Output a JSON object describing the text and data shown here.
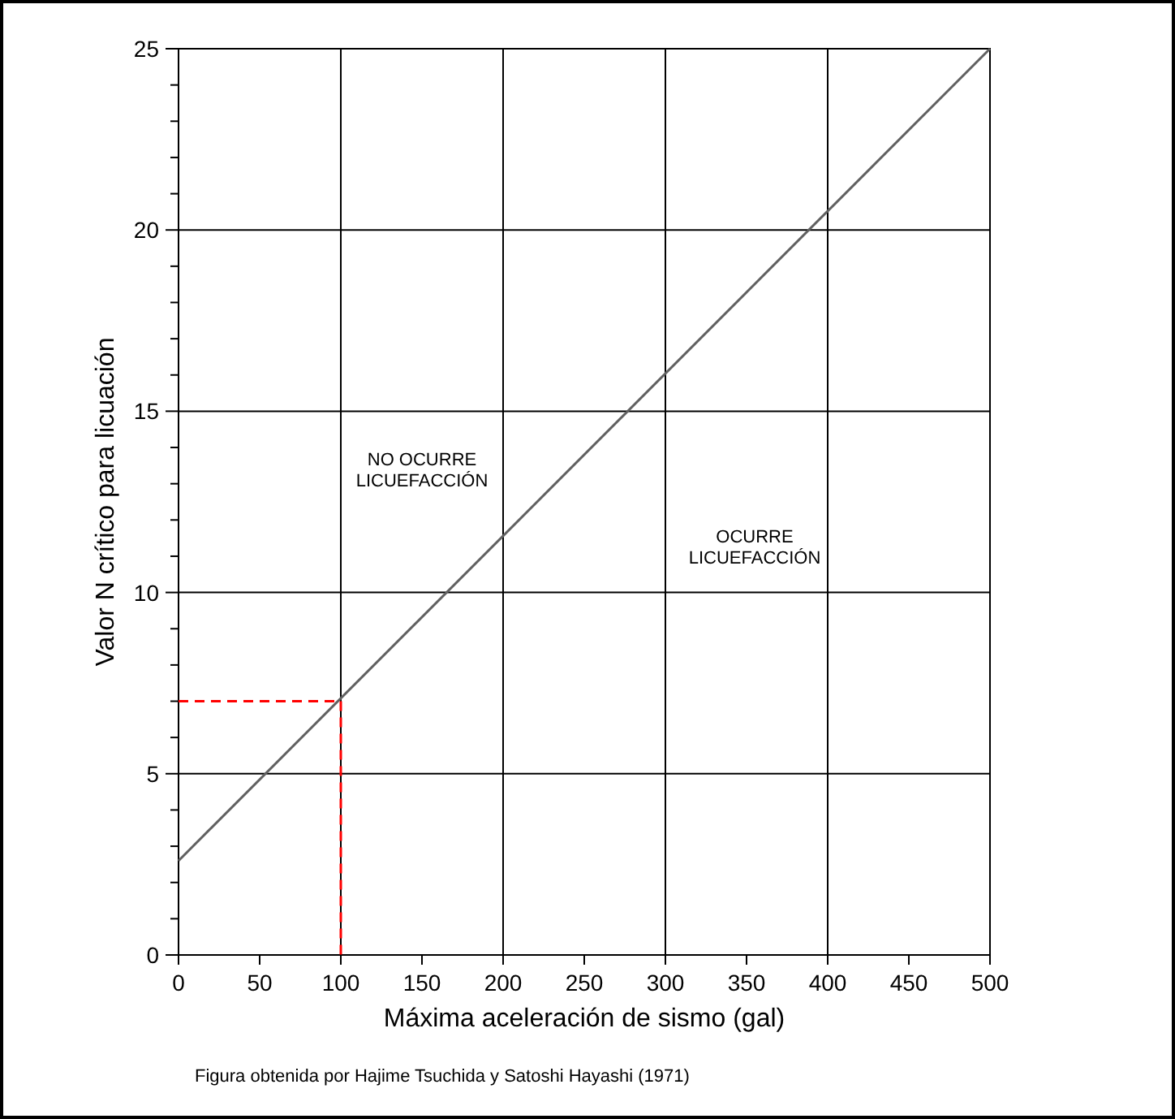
{
  "chart_data": {
    "type": "line",
    "xlabel": "Máxima aceleración de sismo (gal)",
    "ylabel": "Valor N crítico para licuación",
    "xlim": [
      0,
      500
    ],
    "ylim": [
      0,
      25
    ],
    "xticks": [
      0,
      {
        "value": 50,
        "label": "50"
      },
      100,
      {
        "value": 150,
        "label": "150"
      },
      200,
      {
        "value": 250,
        "label": "250"
      },
      300,
      {
        "value": 350,
        "label": "350"
      },
      400,
      {
        "value": 450,
        "label": "450"
      },
      500
    ],
    "yticks": [
      0,
      {
        "value": 1,
        "label": null
      },
      {
        "value": 2,
        "label": null
      },
      {
        "value": 3,
        "label": null
      },
      {
        "value": 4,
        "label": null
      },
      5,
      {
        "value": 6,
        "label": null
      },
      {
        "value": 7,
        "label": null
      },
      {
        "value": 8,
        "label": null
      },
      {
        "value": 9,
        "label": null
      },
      10,
      {
        "value": 11,
        "label": null
      },
      {
        "value": 12,
        "label": null
      },
      {
        "value": 13,
        "label": null
      },
      {
        "value": 14,
        "label": null
      },
      15,
      {
        "value": 16,
        "label": null
      },
      {
        "value": 17,
        "label": null
      },
      {
        "value": 18,
        "label": null
      },
      {
        "value": 19,
        "label": null
      },
      20,
      {
        "value": 21,
        "label": null
      },
      {
        "value": 22,
        "label": null
      },
      {
        "value": 23,
        "label": null
      },
      {
        "value": 24,
        "label": null
      },
      25
    ],
    "grid": true,
    "series": [
      {
        "x": [
          0,
          500
        ],
        "values": [
          2.6,
          25
        ],
        "color": "#606060",
        "line_style": "solid"
      },
      {
        "x": [
          0,
          100,
          100
        ],
        "values": [
          7,
          7,
          0
        ],
        "color": "#ff0000",
        "line_style": "dashed"
      }
    ],
    "annotations": [
      "NO OCURRE\nLICUEFACCIÓN",
      "OCURRE\nLICUEFACCIÓN",
      "Figura obtenida por Hajime Tsuchida y Satoshi Hayashi (1971)"
    ]
  }
}
